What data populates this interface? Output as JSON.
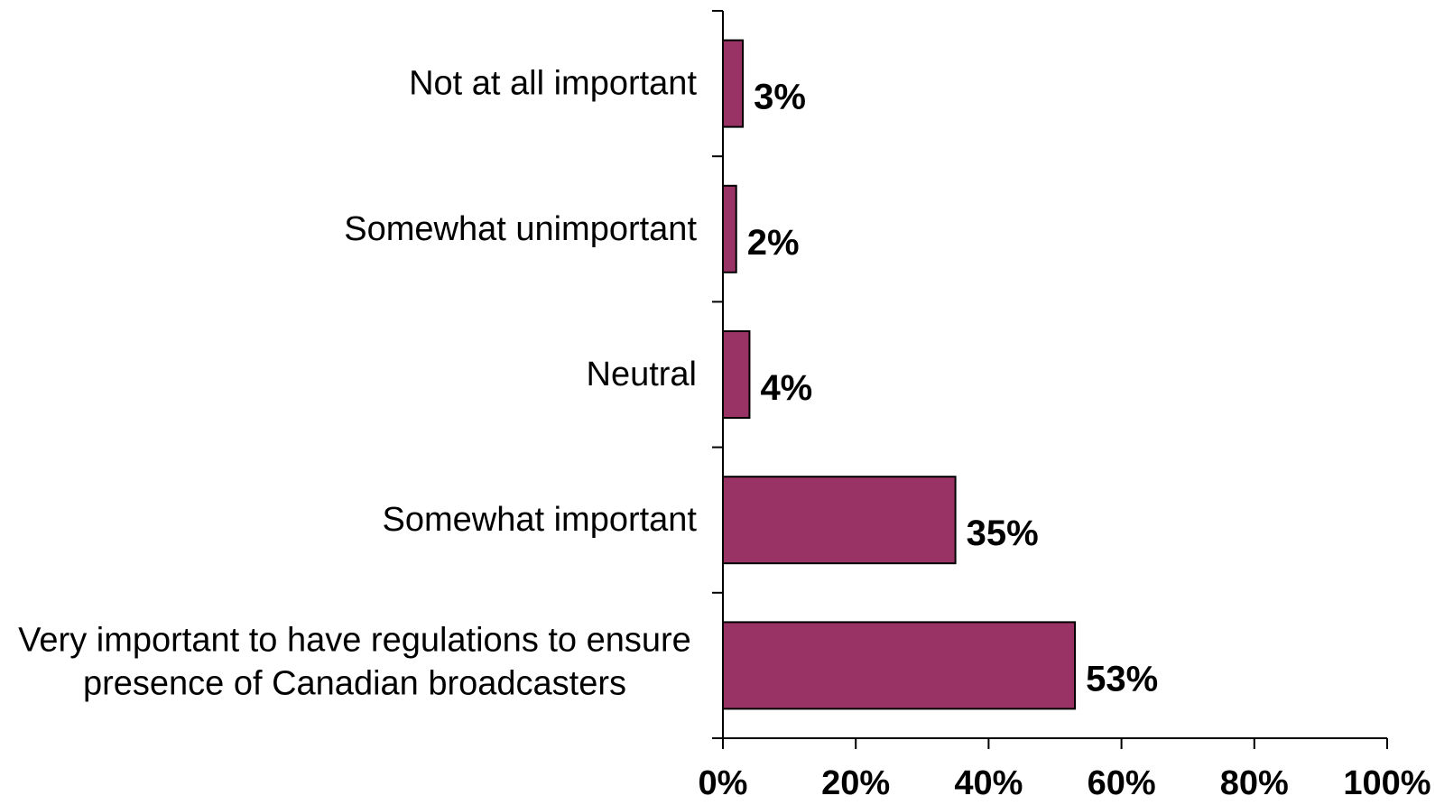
{
  "chart_data": {
    "type": "bar",
    "orientation": "horizontal",
    "categories": [
      "Not at all important",
      "Somewhat unimportant",
      "Neutral",
      "Somewhat important",
      "Very important to have regulations to ensure presence of Canadian broadcasters"
    ],
    "category_lines": [
      [
        "Not at all important"
      ],
      [
        "Somewhat unimportant"
      ],
      [
        "Neutral"
      ],
      [
        "Somewhat important"
      ],
      [
        "Very important to have regulations to ensure",
        "presence of Canadian broadcasters"
      ]
    ],
    "values": [
      3,
      2,
      4,
      35,
      53
    ],
    "data_labels": [
      "3%",
      "2%",
      "4%",
      "35%",
      "53%"
    ],
    "x_ticks": [
      "0%",
      "20%",
      "40%",
      "60%",
      "80%",
      "100%"
    ],
    "xlim": [
      0,
      100
    ],
    "title": "",
    "xlabel": "",
    "ylabel": "",
    "grid": false,
    "legend": "none",
    "bar_color": "#993366"
  }
}
